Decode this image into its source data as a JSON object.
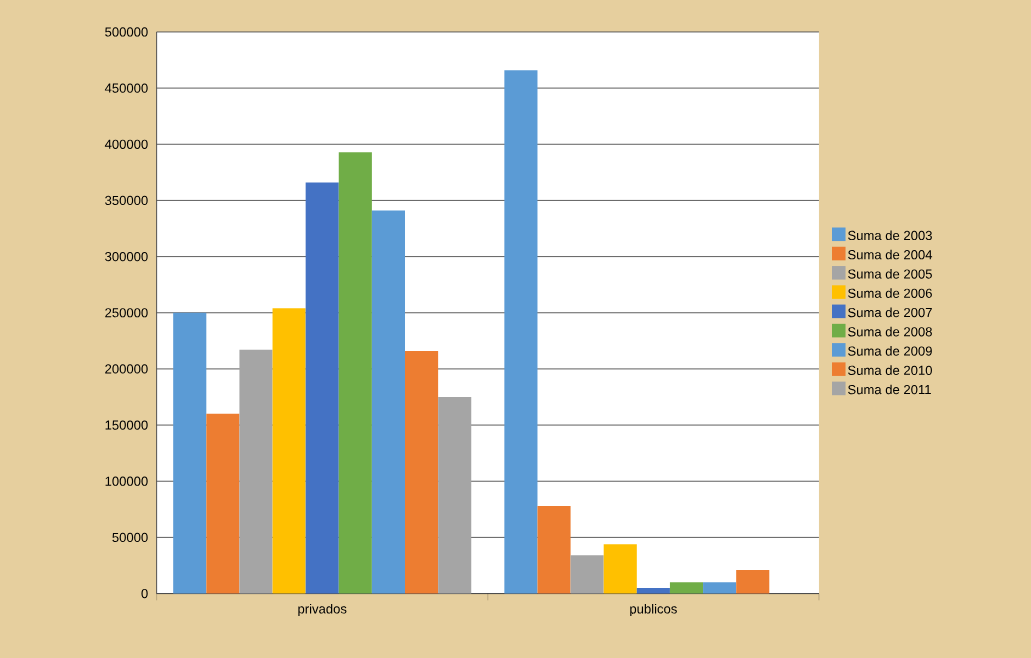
{
  "chart_data": {
    "type": "bar",
    "categories": [
      "privados",
      "publicos"
    ],
    "series": [
      {
        "name": "Suma de 2003",
        "color": "#5b9bd5",
        "values": [
          250000,
          466000
        ]
      },
      {
        "name": "Suma de 2004",
        "color": "#ed7d31",
        "values": [
          160000,
          78000
        ]
      },
      {
        "name": "Suma de 2005",
        "color": "#a5a5a5",
        "values": [
          217000,
          34000
        ]
      },
      {
        "name": "Suma de 2006",
        "color": "#ffc000",
        "values": [
          254000,
          44000
        ]
      },
      {
        "name": "Suma de 2007",
        "color": "#4472c4",
        "values": [
          366000,
          5000
        ]
      },
      {
        "name": "Suma de 2008",
        "color": "#70ad47",
        "values": [
          393000,
          10000
        ]
      },
      {
        "name": "Suma de 2009",
        "color": "#5b9bd5",
        "values": [
          341000,
          10000
        ]
      },
      {
        "name": "Suma de 2010",
        "color": "#ed7d31",
        "values": [
          216000,
          21000
        ]
      },
      {
        "name": "Suma de 2011",
        "color": "#a5a5a5",
        "values": [
          175000,
          0
        ]
      }
    ],
    "ylim": [
      0,
      500000
    ],
    "yticks": [
      0,
      50000,
      100000,
      150000,
      200000,
      250000,
      300000,
      350000,
      400000,
      450000,
      500000
    ],
    "grid": "y",
    "legend": "right"
  }
}
